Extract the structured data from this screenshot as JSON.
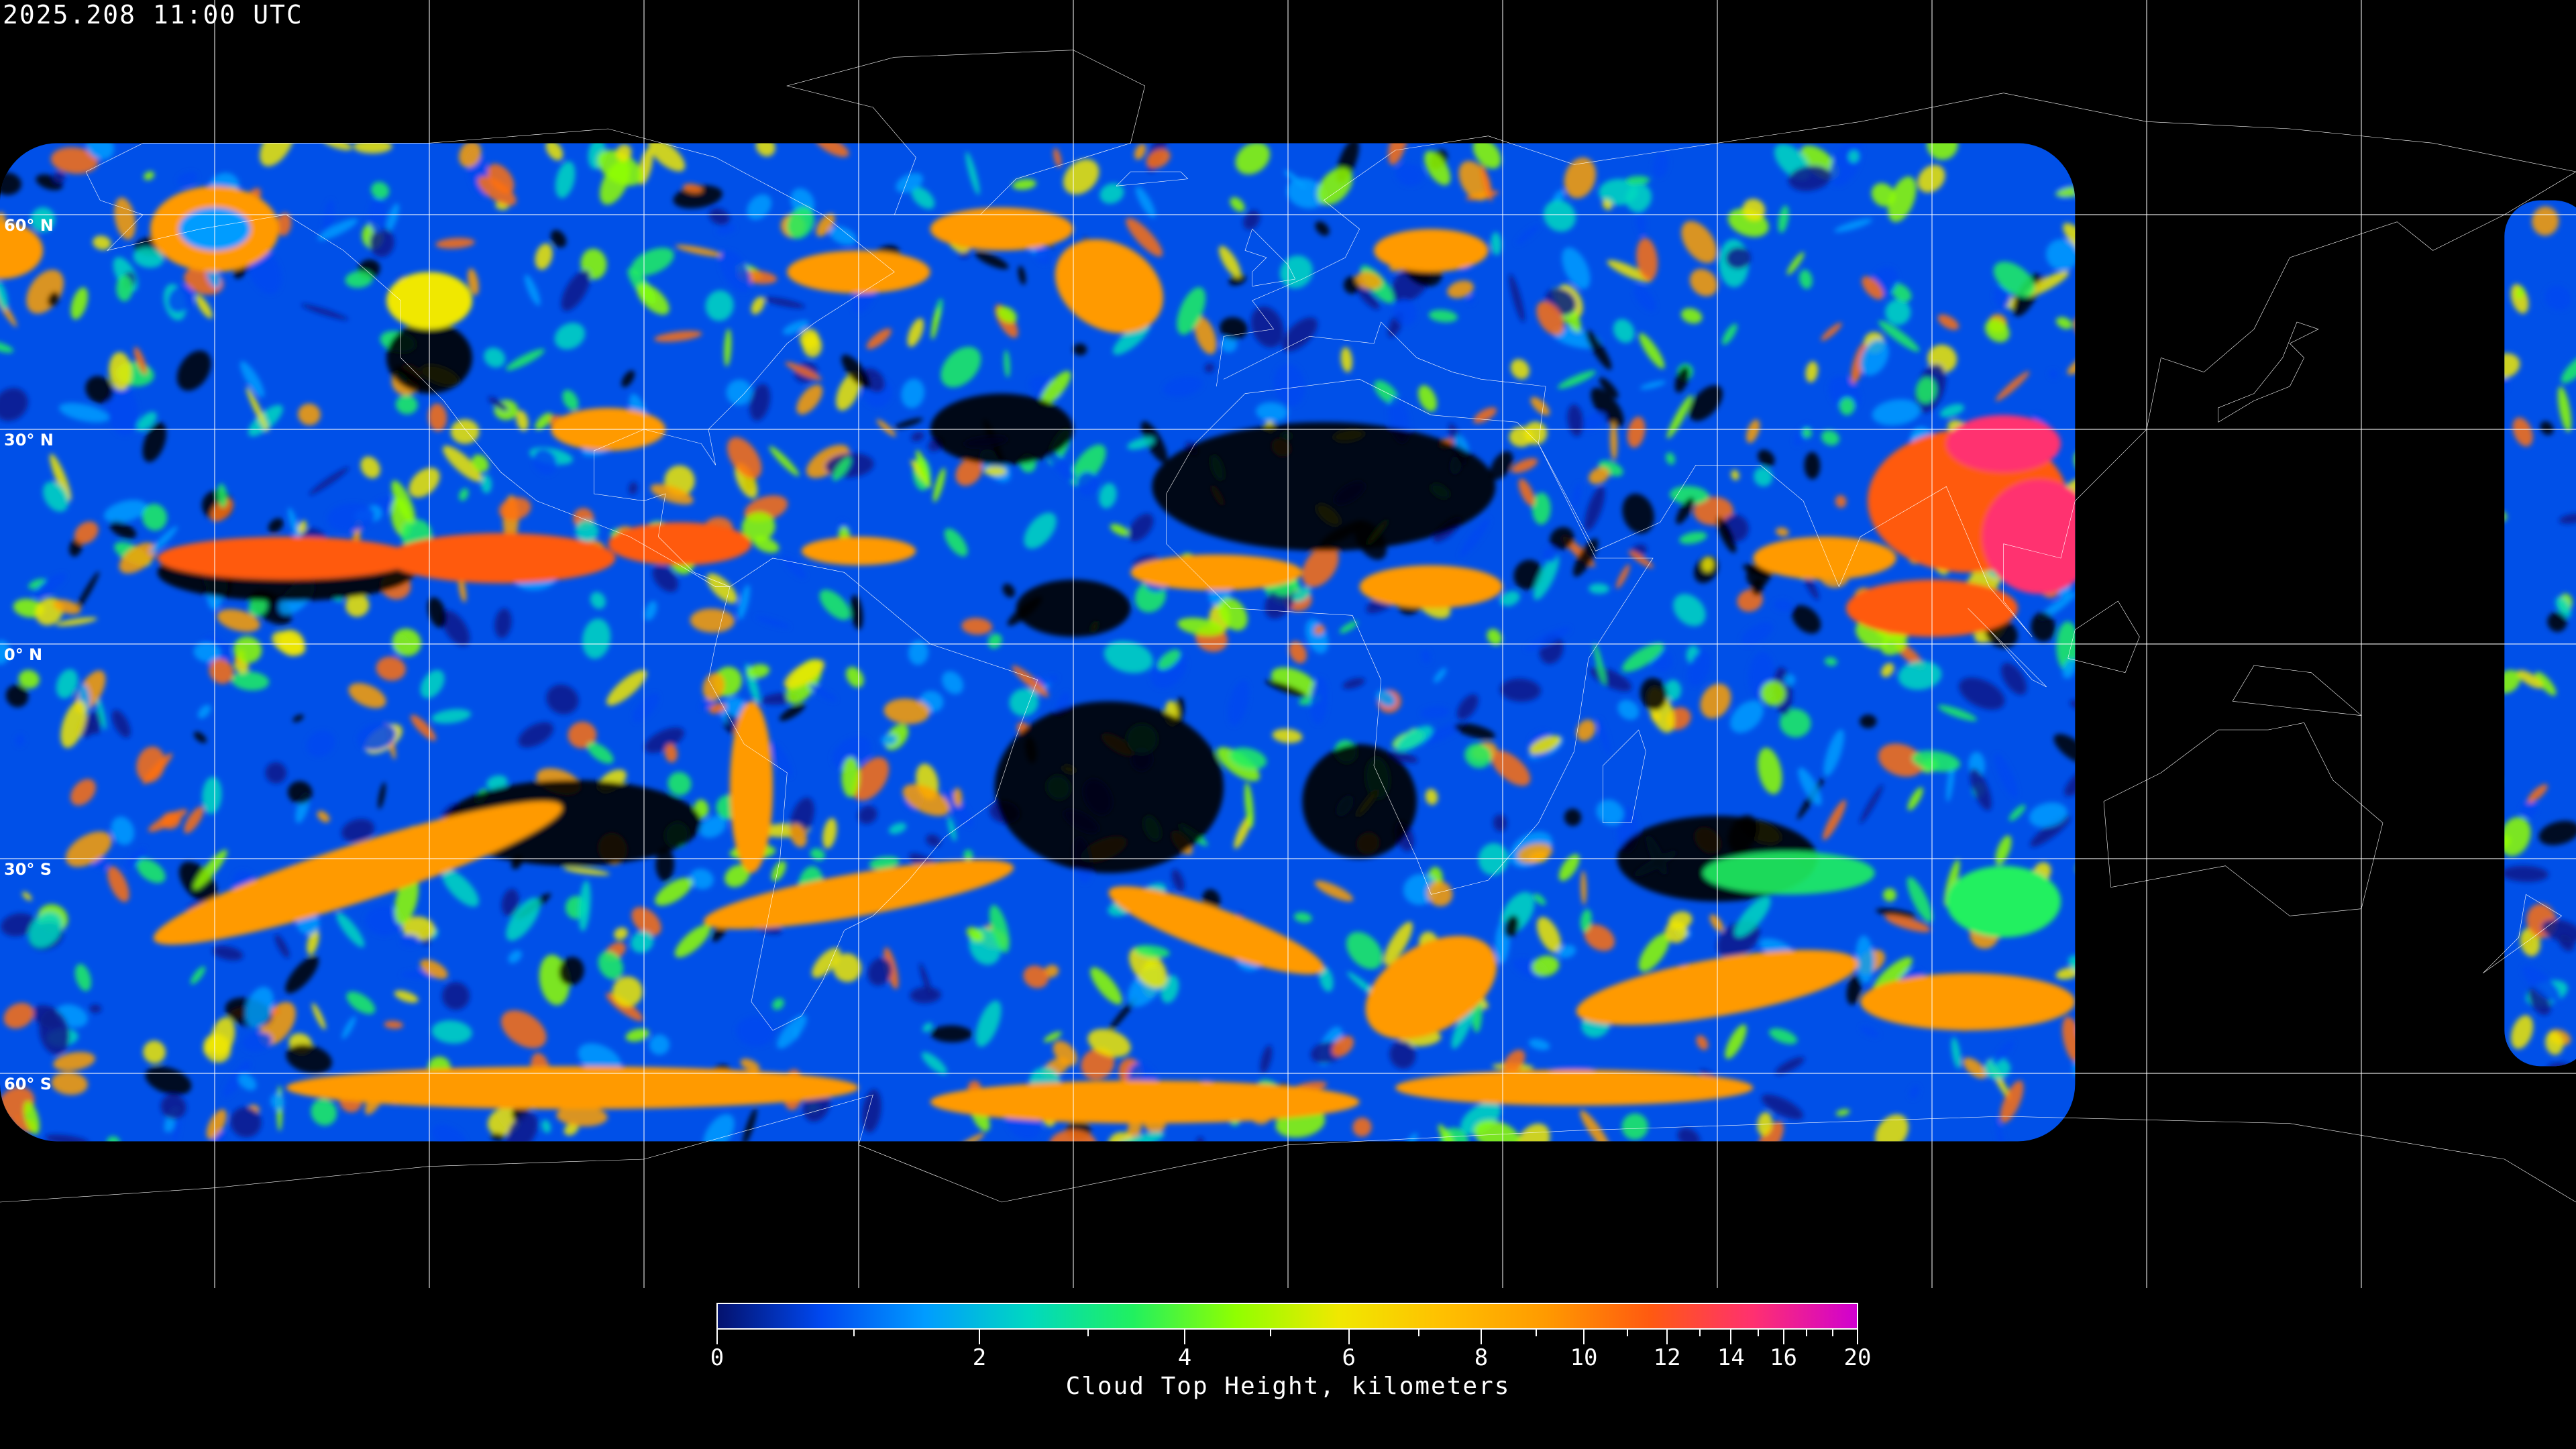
{
  "title": "2025.208 11:00 UTC",
  "map": {
    "projection": "equirectangular",
    "lon_range": [
      -180,
      180
    ],
    "lat_range": [
      -90,
      90
    ],
    "grid_spacing_deg": 30,
    "lat_labels": [
      "60° N",
      "30° N",
      "0° N",
      "30° S",
      "60° S"
    ],
    "coastline_color": "#ffffff",
    "grid_color": "#ffffff",
    "background_color": "#000000"
  },
  "colorbar": {
    "label": "Cloud Top Height, kilometers",
    "min": 0,
    "max": 20,
    "tick_labels": [
      "0",
      "2",
      "4",
      "6",
      "8",
      "10",
      "12",
      "14",
      "16",
      "20"
    ],
    "colors": [
      "#04126e",
      "#0048f0",
      "#009cff",
      "#00d8c0",
      "#20f060",
      "#90ff00",
      "#f0e800",
      "#ffc000",
      "#ff9a00",
      "#ff5a10",
      "#ff3070",
      "#d000d0"
    ]
  }
}
